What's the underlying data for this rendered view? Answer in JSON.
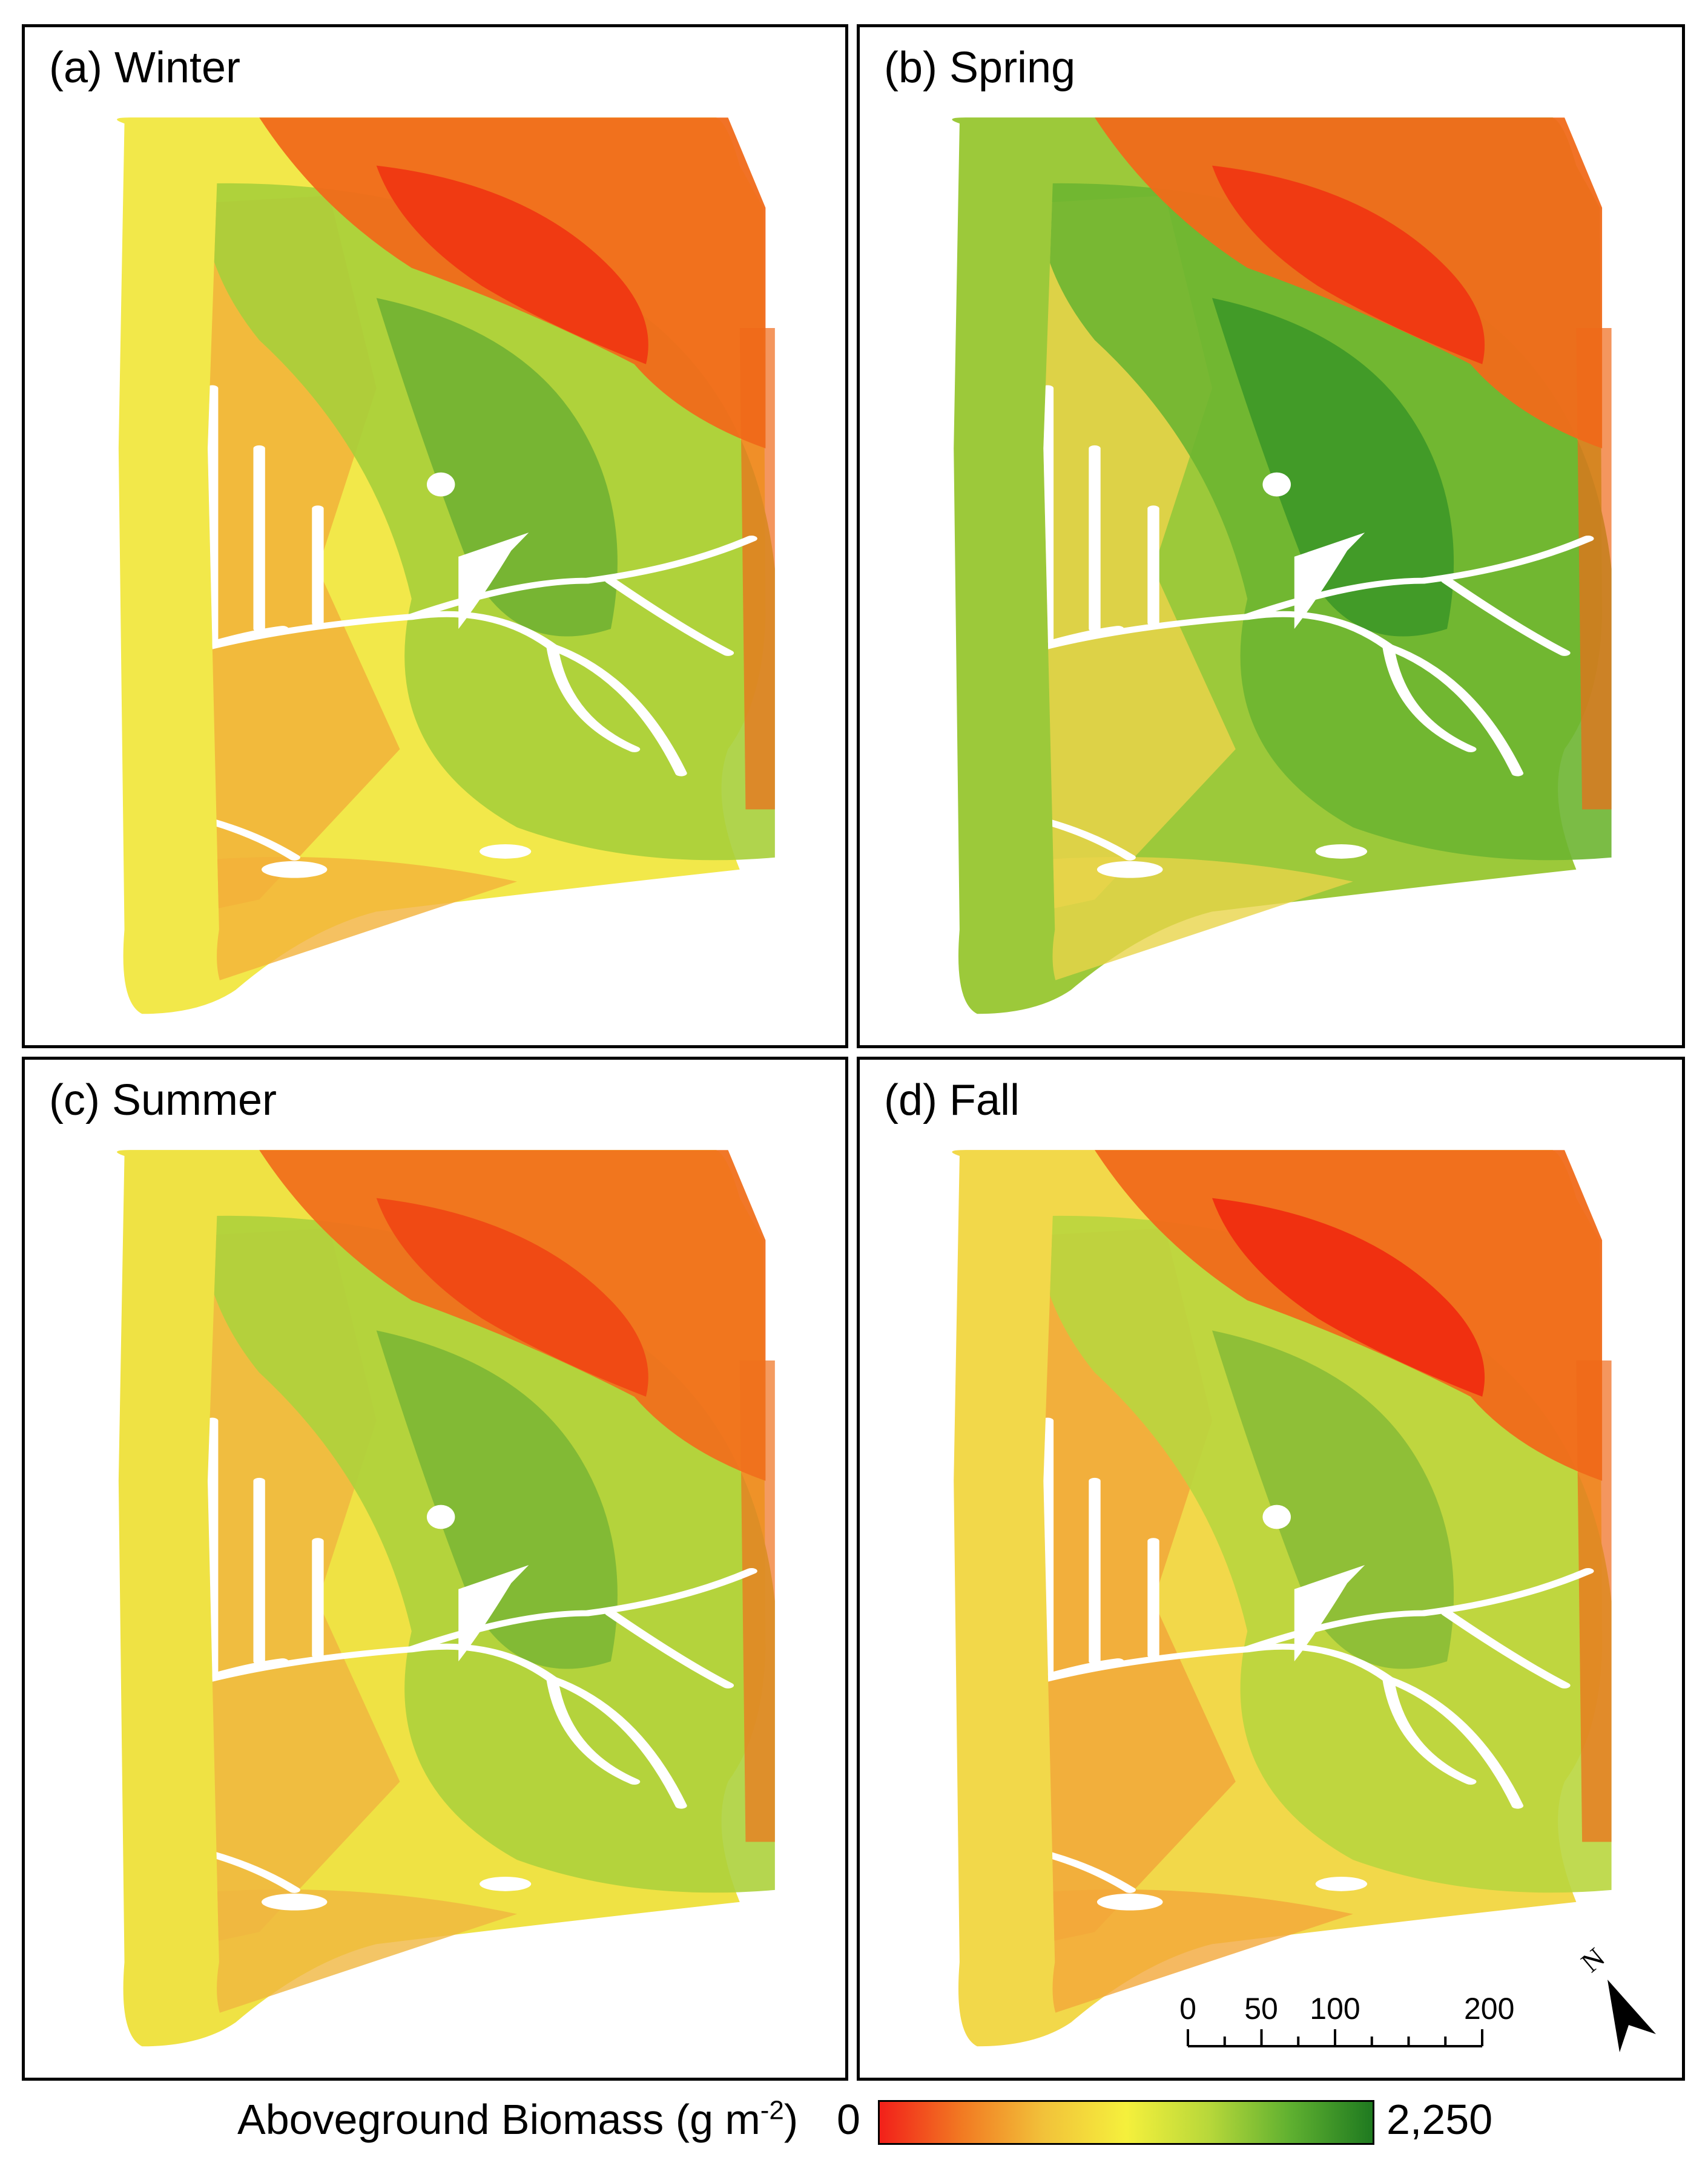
{
  "panels": [
    {
      "label": "(a) Winter",
      "season": "winter",
      "palette": {
        "base": "#f2e84a",
        "low": "#f06a1a",
        "vlow": "#f03a12",
        "mid": "#f2b23a",
        "green": "#a7cf3a",
        "dkgreen": "#5fa830"
      }
    },
    {
      "label": "(b) Spring",
      "season": "spring",
      "palette": {
        "base": "#9cc93a",
        "low": "#f06a1a",
        "vlow": "#f03a12",
        "mid": "#e9d44a",
        "green": "#6db531",
        "dkgreen": "#2f8f25"
      }
    },
    {
      "label": "(c) Summer",
      "season": "summer",
      "palette": {
        "base": "#efe244",
        "low": "#f0701c",
        "vlow": "#f04a14",
        "mid": "#f0b640",
        "green": "#add23c",
        "dkgreen": "#6caf32"
      }
    },
    {
      "label": "(d) Fall",
      "season": "fall",
      "palette": {
        "base": "#f2d84a",
        "low": "#f06a1a",
        "vlow": "#f03010",
        "mid": "#f2a83a",
        "green": "#b9d63e",
        "dkgreen": "#7ab535"
      }
    }
  ],
  "scale_bar": {
    "labels": [
      "0",
      "50",
      "100",
      "200 m"
    ],
    "ticks_m": [
      0,
      25,
      50,
      75,
      100,
      125,
      150,
      175,
      200
    ]
  },
  "north_arrow": {
    "label": "N"
  },
  "legend": {
    "title": "Aboveground Biomass (g m",
    "title_sup": "-2",
    "title_close": ")",
    "min_label": "0",
    "max_label": "2,250",
    "colors": [
      "#f2201a",
      "#f27a22",
      "#f2c23a",
      "#f5f03c",
      "#b8d83a",
      "#5fb030",
      "#1f7a20"
    ]
  }
}
